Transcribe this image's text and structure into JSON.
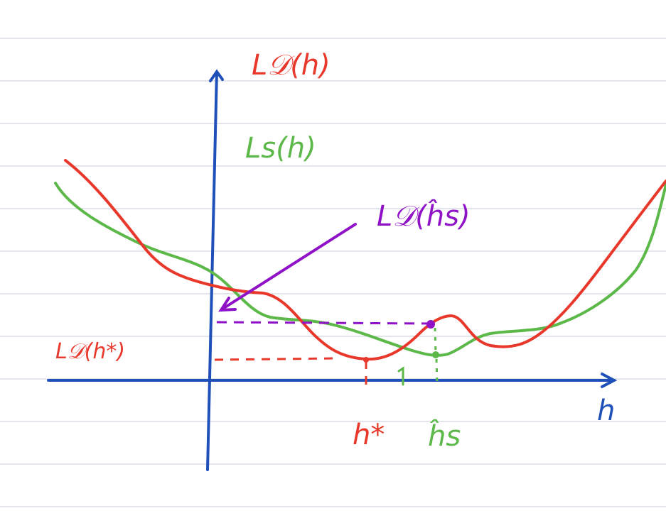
{
  "colors": {
    "red": "#e8382b",
    "green": "#5db84a",
    "purple": "#8f12c7",
    "blue": "#1f4fb8",
    "ruled_line": "#c6ccd8"
  },
  "labels": {
    "ld_h": "L𝒟(h)",
    "ls_h": "Ls(h)",
    "ld_hs": "L𝒟(ĥs)",
    "ld_hstar": "L𝒟(h*)",
    "h_axis": "h",
    "h_star": "h*",
    "h_hat_s": "ĥs"
  }
}
